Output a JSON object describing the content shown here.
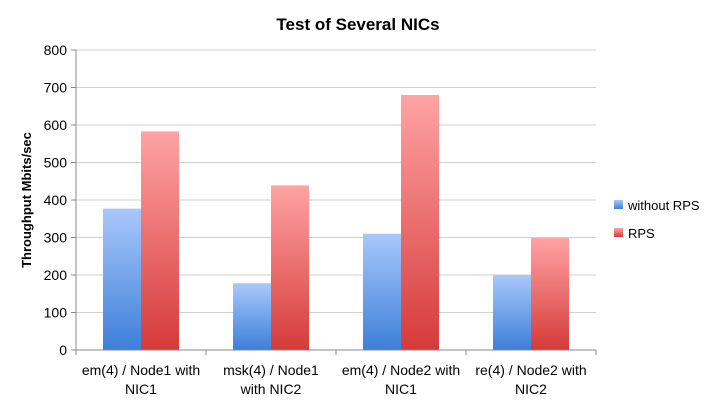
{
  "chart_data": {
    "type": "bar",
    "title": "Test of Several NICs",
    "xlabel": "",
    "ylabel": "Throughput Mbits/sec",
    "ylim": [
      0,
      800
    ],
    "yticks": [
      0,
      100,
      200,
      300,
      400,
      500,
      600,
      700,
      800
    ],
    "categories": [
      [
        "em(4) / Node1 with",
        "NIC1"
      ],
      [
        "msk(4) / Node1",
        "with NIC2"
      ],
      [
        "em(4) / Node2 with",
        "NIC1"
      ],
      [
        "re(4) / Node2 with",
        "NIC2"
      ]
    ],
    "series": [
      {
        "name": "without RPS",
        "values": [
          377,
          178,
          310,
          200
        ],
        "color": "#6b9bea"
      },
      {
        "name": "RPS",
        "values": [
          583,
          439,
          680,
          299
        ],
        "color": "#e86464"
      }
    ],
    "grid": true,
    "legend": "right"
  }
}
